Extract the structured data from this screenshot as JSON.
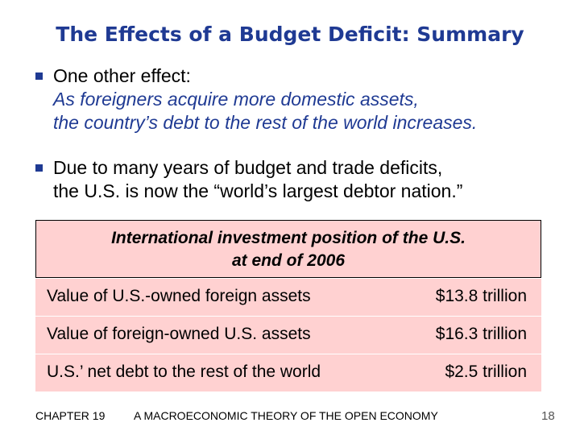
{
  "slide": {
    "title": "The Effects of a Budget Deficit:  Summary",
    "bullets": [
      {
        "lead": "One other effect:",
        "line2": "As foreigners acquire more domestic assets,",
        "line3": "the country’s debt to the rest of the world increases."
      },
      {
        "line1": "Due to many years of budget and trade deficits,",
        "line2": "the U.S. is now the “world’s largest debtor nation.”"
      }
    ],
    "table": {
      "header_line1": "International investment position of the U.S.",
      "header_line2": "at end of 2006",
      "rows": [
        {
          "label": "Value of U.S.-owned foreign assets",
          "value": "$13.8 trillion"
        },
        {
          "label": "Value of foreign-owned U.S. assets",
          "value": "$16.3 trillion"
        },
        {
          "label": "U.S.’ net debt to the rest of the world",
          "value": "$2.5 trillion"
        }
      ]
    },
    "footer": {
      "chapter": "CHAPTER 19",
      "book_title": "A MACROECONOMIC THEORY OF THE OPEN ECONOMY",
      "page_number": "18"
    },
    "colors": {
      "title": "#1f3a93",
      "table_fill": "#ffd1d1"
    }
  }
}
